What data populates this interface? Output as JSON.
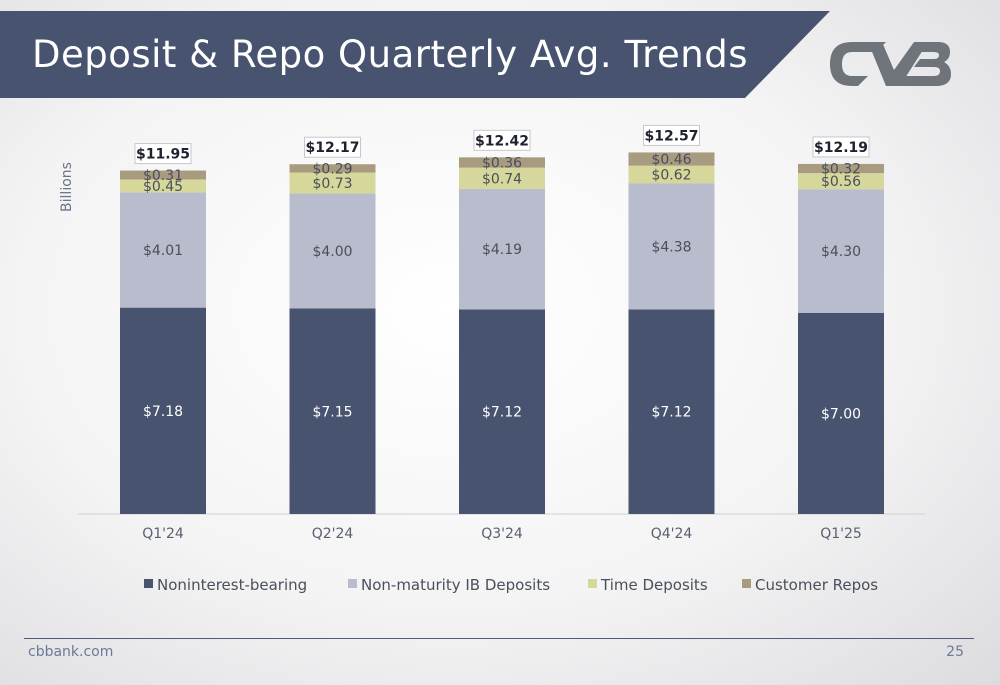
{
  "header": {
    "title": "Deposit & Repo Quarterly Avg. Trends"
  },
  "logo": {
    "name": "cvb-logo-icon"
  },
  "footer": {
    "left": "cbbank.com",
    "page": "25"
  },
  "chart_data": {
    "type": "bar",
    "stacked": true,
    "ylabel": "Billions",
    "categories": [
      "Q1'24",
      "Q2'24",
      "Q3'24",
      "Q4'24",
      "Q1'25"
    ],
    "series": [
      {
        "name": "Noninterest-bearing",
        "color": "#48536f",
        "values": [
          7.18,
          7.15,
          7.12,
          7.12,
          7.0
        ],
        "labels": [
          "$7.18",
          "$7.15",
          "$7.12",
          "$7.12",
          "$7.00"
        ]
      },
      {
        "name": "Non-maturity IB Deposits",
        "color": "#b8bccd",
        "values": [
          4.01,
          4.0,
          4.19,
          4.38,
          4.3
        ],
        "labels": [
          "$4.01",
          "$4.00",
          "$4.19",
          "$4.38",
          "$4.30"
        ]
      },
      {
        "name": "Time Deposits",
        "color": "#d6d89b",
        "values": [
          0.45,
          0.73,
          0.74,
          0.62,
          0.56
        ],
        "labels": [
          "$0.45",
          "$0.73",
          "$0.74",
          "$0.62",
          "$0.56"
        ]
      },
      {
        "name": "Customer Repos",
        "color": "#a89b7f",
        "values": [
          0.31,
          0.29,
          0.36,
          0.46,
          0.32
        ],
        "labels": [
          "$0.31",
          "$0.29",
          "$0.36",
          "$0.46",
          "$0.32"
        ]
      }
    ],
    "totals": [
      "$11.95",
      "$12.17",
      "$12.42",
      "$12.57",
      "$12.19"
    ],
    "ylim": [
      0,
      13.5
    ],
    "legend": "bottom",
    "grid": false
  }
}
